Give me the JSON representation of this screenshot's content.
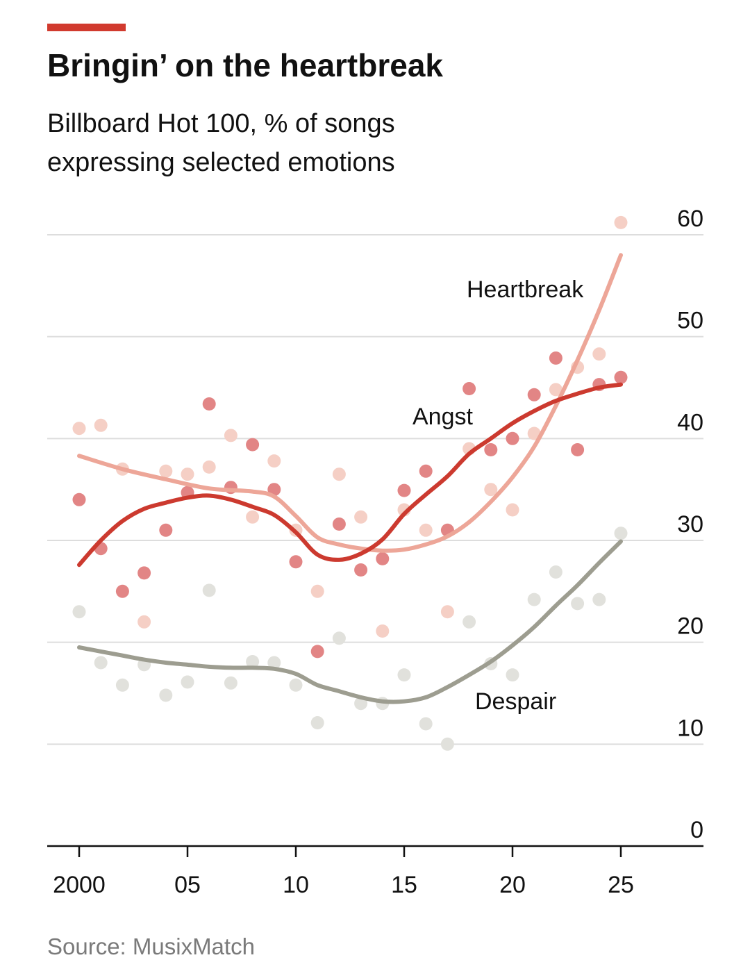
{
  "accent_bar_color": "#d13a2e",
  "chart_data": {
    "type": "scatter",
    "title": "Bringin’ on the heartbreak",
    "subtitle_lines": [
      "Billboard Hot 100, % of songs",
      "expressing selected emotions"
    ],
    "xlabel": "",
    "ylabel": "",
    "x_tick_values": [
      2000,
      2005,
      2010,
      2015,
      2020,
      2025
    ],
    "x_tick_labels": [
      "2000",
      "05",
      "10",
      "15",
      "20",
      "25"
    ],
    "xlim": [
      1998.5,
      2028.5
    ],
    "y_ticks": [
      0,
      10,
      20,
      30,
      40,
      50,
      60
    ],
    "y_tick_labels": [
      "0",
      "10",
      "20",
      "30",
      "40",
      "50",
      "60"
    ],
    "ylim": [
      0,
      60
    ],
    "grid": true,
    "y_axis_side": "right",
    "series": [
      {
        "name": "Heartbreak",
        "label": "Heartbreak",
        "dot_color": "#f5cfc5",
        "line_color": "#eda698",
        "points": [
          [
            2000,
            41
          ],
          [
            2001,
            41.3
          ],
          [
            2002,
            37
          ],
          [
            2003,
            22
          ],
          [
            2004,
            36.8
          ],
          [
            2005,
            36.5
          ],
          [
            2006,
            37.2
          ],
          [
            2007,
            40.3
          ],
          [
            2008,
            32.3
          ],
          [
            2009,
            37.8
          ],
          [
            2010,
            31
          ],
          [
            2011,
            25
          ],
          [
            2012,
            36.5
          ],
          [
            2013,
            32.3
          ],
          [
            2014,
            21.1
          ],
          [
            2015,
            33
          ],
          [
            2016,
            31
          ],
          [
            2017,
            23
          ],
          [
            2018,
            39
          ],
          [
            2019,
            35
          ],
          [
            2020,
            33
          ],
          [
            2021,
            40.5
          ],
          [
            2022,
            44.8
          ],
          [
            2023,
            47
          ],
          [
            2024,
            48.3
          ],
          [
            2025,
            61.2
          ]
        ],
        "trend": [
          [
            2000,
            38.3
          ],
          [
            2002,
            37
          ],
          [
            2004,
            36
          ],
          [
            2006,
            35.1
          ],
          [
            2008,
            34.8
          ],
          [
            2009,
            34.3
          ],
          [
            2010,
            32.4
          ],
          [
            2011,
            30.3
          ],
          [
            2012,
            29.6
          ],
          [
            2013,
            29.2
          ],
          [
            2014,
            29
          ],
          [
            2015,
            29.1
          ],
          [
            2016,
            29.6
          ],
          [
            2017,
            30.4
          ],
          [
            2018,
            31.8
          ],
          [
            2019,
            33.8
          ],
          [
            2020,
            36.2
          ],
          [
            2021,
            39.2
          ],
          [
            2022,
            43.2
          ],
          [
            2023,
            47.7
          ],
          [
            2024,
            52.6
          ],
          [
            2025,
            58
          ]
        ]
      },
      {
        "name": "Angst",
        "label": "Angst",
        "dot_color": "#e28585",
        "line_color": "#cc3a2f",
        "points": [
          [
            2000,
            34
          ],
          [
            2001,
            29.2
          ],
          [
            2002,
            25
          ],
          [
            2003,
            26.8
          ],
          [
            2004,
            31
          ],
          [
            2005,
            34.7
          ],
          [
            2006,
            43.4
          ],
          [
            2007,
            35.2
          ],
          [
            2008,
            39.4
          ],
          [
            2009,
            35
          ],
          [
            2010,
            27.9
          ],
          [
            2011,
            19.1
          ],
          [
            2012,
            31.6
          ],
          [
            2013,
            27.1
          ],
          [
            2014,
            28.2
          ],
          [
            2015,
            34.9
          ],
          [
            2016,
            36.8
          ],
          [
            2017,
            31
          ],
          [
            2018,
            44.9
          ],
          [
            2019,
            38.9
          ],
          [
            2020,
            40
          ],
          [
            2021,
            44.3
          ],
          [
            2022,
            47.9
          ],
          [
            2023,
            38.9
          ],
          [
            2024,
            45.3
          ],
          [
            2025,
            46
          ]
        ],
        "trend": [
          [
            2000,
            27.6
          ],
          [
            2001,
            30
          ],
          [
            2002,
            31.9
          ],
          [
            2003,
            33.1
          ],
          [
            2004,
            33.7
          ],
          [
            2005,
            34.2
          ],
          [
            2006,
            34.4
          ],
          [
            2007,
            34
          ],
          [
            2008,
            33.3
          ],
          [
            2009,
            32.5
          ],
          [
            2010,
            30.8
          ],
          [
            2011,
            28.6
          ],
          [
            2012,
            28.1
          ],
          [
            2013,
            28.7
          ],
          [
            2014,
            30.1
          ],
          [
            2015,
            32.6
          ],
          [
            2016,
            34.5
          ],
          [
            2017,
            36.3
          ],
          [
            2018,
            38.5
          ],
          [
            2019,
            40
          ],
          [
            2020,
            41.5
          ],
          [
            2021,
            42.7
          ],
          [
            2022,
            43.7
          ],
          [
            2023,
            44.4
          ],
          [
            2024,
            45
          ],
          [
            2025,
            45.3
          ]
        ]
      },
      {
        "name": "Despair",
        "label": "Despair",
        "dot_color": "#e1e1dc",
        "line_color": "#9d9d90",
        "points": [
          [
            2000,
            23
          ],
          [
            2001,
            18
          ],
          [
            2002,
            15.8
          ],
          [
            2003,
            17.8
          ],
          [
            2004,
            14.8
          ],
          [
            2005,
            16.1
          ],
          [
            2006,
            25.1
          ],
          [
            2007,
            16
          ],
          [
            2008,
            18.1
          ],
          [
            2009,
            18
          ],
          [
            2010,
            15.8
          ],
          [
            2011,
            12.1
          ],
          [
            2012,
            20.4
          ],
          [
            2013,
            14
          ],
          [
            2014,
            14
          ],
          [
            2015,
            16.8
          ],
          [
            2016,
            12
          ],
          [
            2017,
            10
          ],
          [
            2018,
            22
          ],
          [
            2019,
            17.9
          ],
          [
            2020,
            16.8
          ],
          [
            2021,
            24.2
          ],
          [
            2022,
            26.9
          ],
          [
            2023,
            23.8
          ],
          [
            2024,
            24.2
          ],
          [
            2025,
            30.7
          ]
        ],
        "trend": [
          [
            2000,
            19.5
          ],
          [
            2001,
            19.1
          ],
          [
            2002,
            18.7
          ],
          [
            2003,
            18.3
          ],
          [
            2004,
            18
          ],
          [
            2005,
            17.8
          ],
          [
            2006,
            17.6
          ],
          [
            2007,
            17.5
          ],
          [
            2008,
            17.5
          ],
          [
            2009,
            17.4
          ],
          [
            2010,
            16.9
          ],
          [
            2011,
            15.8
          ],
          [
            2012,
            15.2
          ],
          [
            2013,
            14.6
          ],
          [
            2014,
            14.2
          ],
          [
            2015,
            14.2
          ],
          [
            2016,
            14.6
          ],
          [
            2017,
            15.6
          ],
          [
            2018,
            16.8
          ],
          [
            2019,
            18.1
          ],
          [
            2020,
            19.7
          ],
          [
            2021,
            21.5
          ],
          [
            2022,
            23.6
          ],
          [
            2023,
            25.6
          ],
          [
            2024,
            27.8
          ],
          [
            2025,
            29.9
          ]
        ]
      }
    ],
    "source": "Source: MusixMatch"
  }
}
